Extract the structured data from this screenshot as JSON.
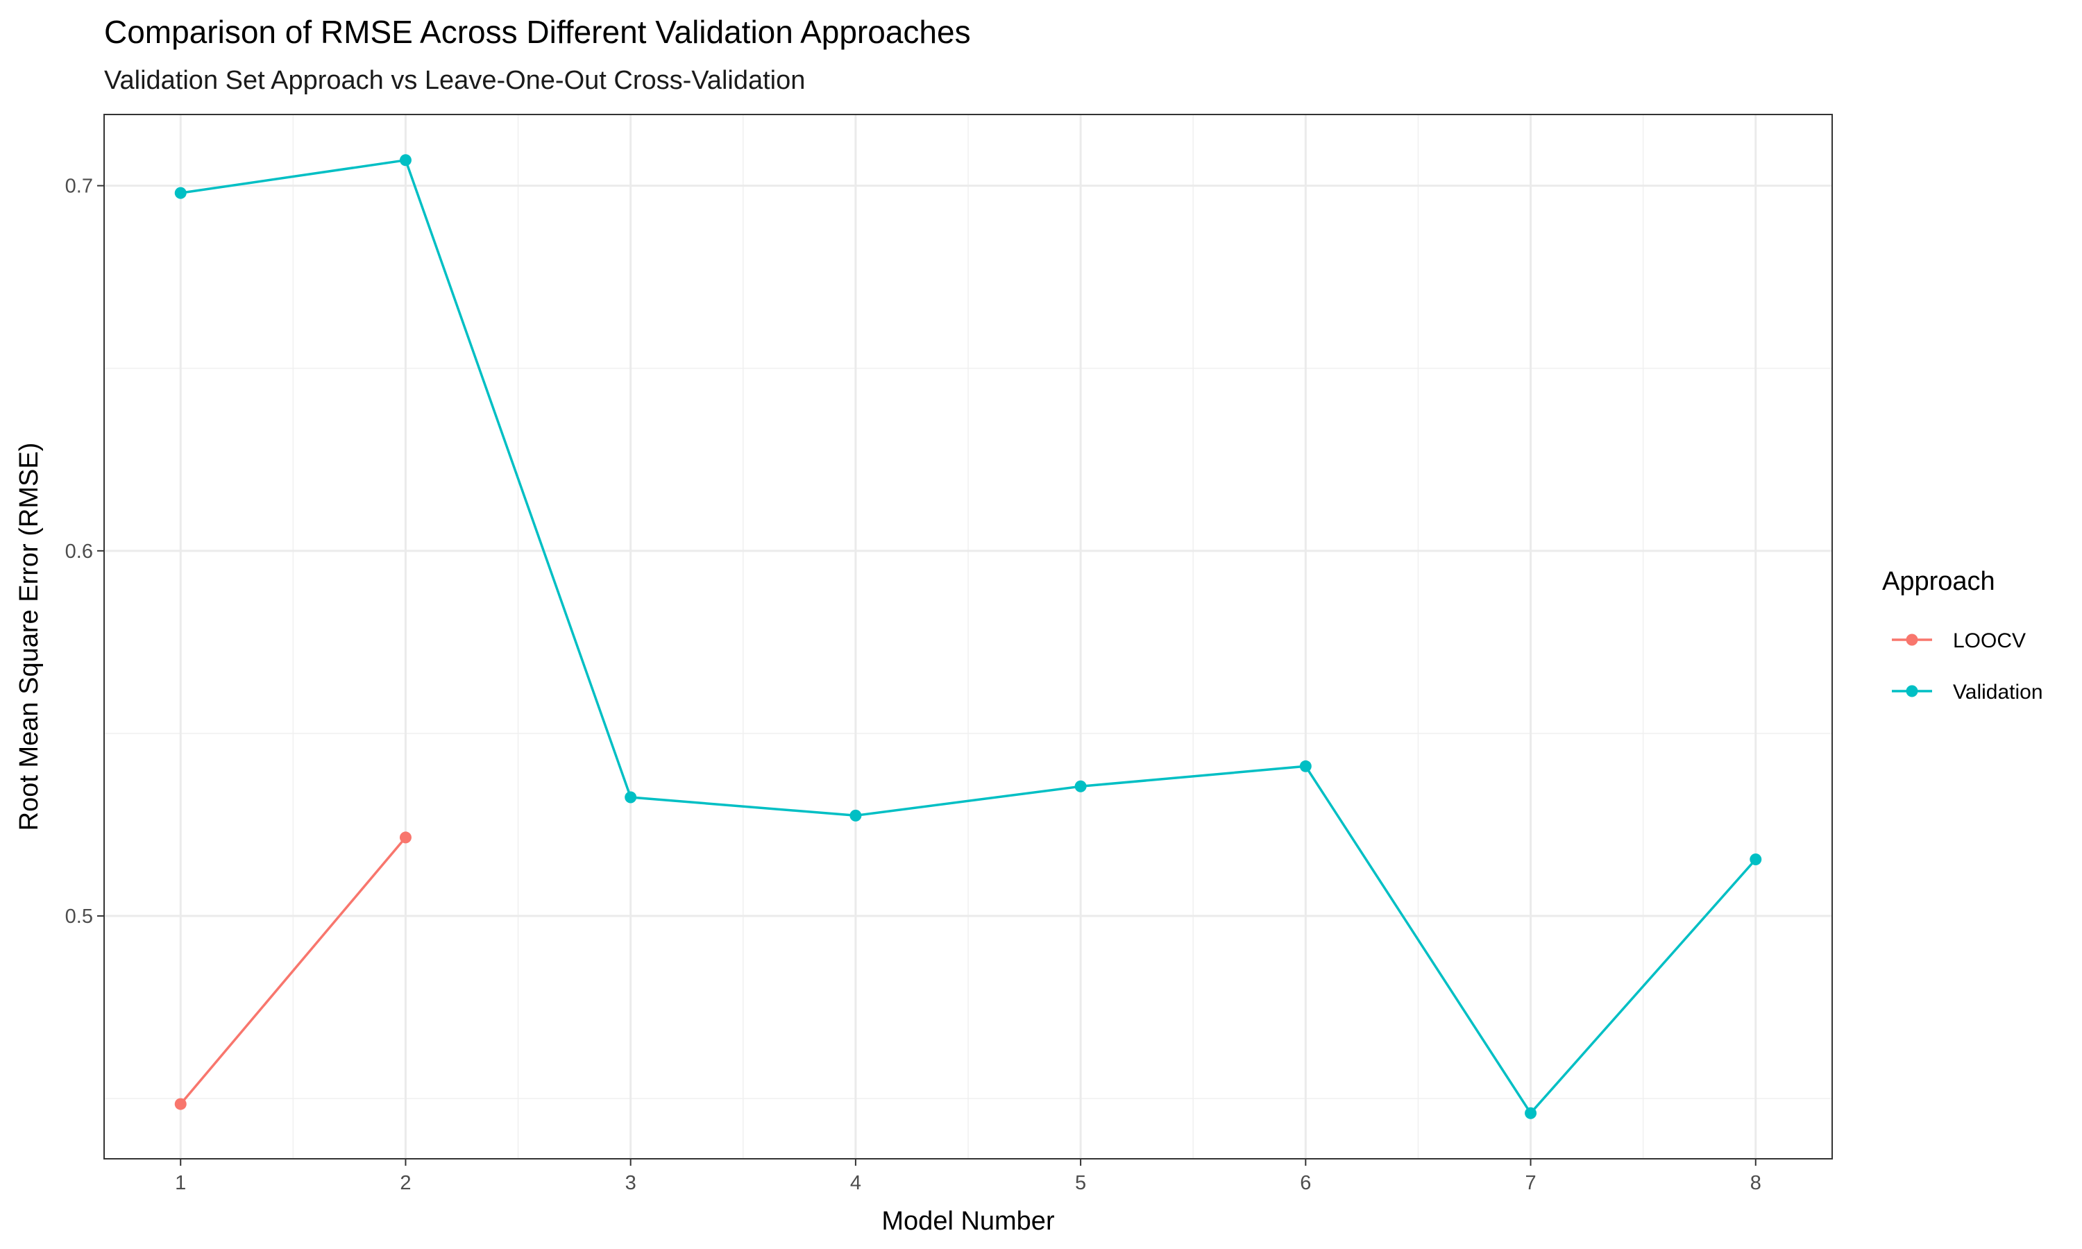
{
  "chart_data": {
    "type": "line",
    "title": "Comparison of RMSE Across Different Validation Approaches",
    "subtitle": "Validation Set Approach vs Leave-One-Out Cross-Validation",
    "xlabel": "Model Number",
    "ylabel": "Root Mean Square Error (RMSE)",
    "xlim": [
      0.66,
      8.34
    ],
    "ylim": [
      0.4335,
      0.7195
    ],
    "x_ticks": [
      "1",
      "2",
      "3",
      "4",
      "5",
      "6",
      "7",
      "8"
    ],
    "y_ticks": [
      "0.5",
      "0.6",
      "0.7"
    ],
    "grid": true,
    "legend": {
      "title": "Approach",
      "position": "right"
    },
    "series": [
      {
        "name": "LOOCV",
        "color": "#F8766D",
        "x": [
          1,
          2
        ],
        "y": [
          0.4485,
          0.5215
        ]
      },
      {
        "name": "Validation",
        "color": "#00BFC4",
        "x": [
          1,
          2,
          3,
          4,
          5,
          6,
          7,
          8
        ],
        "y": [
          0.698,
          0.707,
          0.5325,
          0.5275,
          0.5355,
          0.541,
          0.446,
          0.5155
        ]
      }
    ]
  }
}
